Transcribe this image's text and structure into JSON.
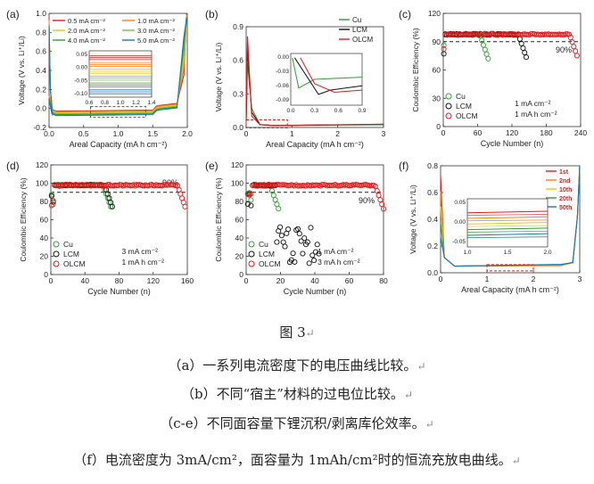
{
  "caption": {
    "figure_label": "图 3",
    "lines": [
      "（a）一系列电流密度下的电压曲线比较。",
      "（b）不同“宿主”材料的过电位比较。",
      "（c-e）不同面容量下锂沉积/剥离库伦效率。",
      "（f）电流密度为 3mA/cm²，面容量为 1mAh/cm²时的恒流充放电曲线。"
    ],
    "return_mark": "↵"
  },
  "chart_data": [
    {
      "panel": "(a)",
      "type": "line",
      "xlabel": "Areal Capacity (mA h cm⁻²)",
      "ylabel": "Voltage (V vs. Li⁺/Li)",
      "xlim": [
        0,
        2.0
      ],
      "ylim": [
        -0.2,
        1.0
      ],
      "xticks": [
        "0.0",
        "0.5",
        "1.0",
        "1.5",
        "2.0"
      ],
      "yticks": [
        "-0.2",
        "0.0",
        "0.2",
        "0.4",
        "0.6",
        "0.8",
        "1.0"
      ],
      "series": [
        {
          "name": "0.5 mA cm⁻²",
          "color": "#e31a1c",
          "plateau": -0.028
        },
        {
          "name": "1.0 mA cm⁻²",
          "color": "#ff7f0e",
          "plateau": -0.035
        },
        {
          "name": "2.0 mA cm⁻²",
          "color": "#f2c500",
          "plateau": -0.045
        },
        {
          "name": "3.0 mA cm⁻²",
          "color": "#7fbf3f",
          "plateau": -0.055
        },
        {
          "name": "4.0 mA cm⁻²",
          "color": "#2ca02c",
          "plateau": -0.065
        },
        {
          "name": "5.0 mA cm⁻²",
          "color": "#1f77b4",
          "plateau": -0.075
        }
      ],
      "inset": {
        "xticks": [
          "0.6",
          "0.8",
          "1.0",
          "1.2",
          "1.4"
        ],
        "yticks": [
          "0.05",
          "0.00",
          "-0.05",
          "-0.10"
        ],
        "xlim": [
          0.6,
          1.4
        ],
        "ylim": [
          -0.12,
          0.07
        ]
      }
    },
    {
      "panel": "(b)",
      "type": "line",
      "xlabel": "Areal Capacity (mA h cm⁻²)",
      "ylabel": "Voltage (V vs. Li⁺/Li)",
      "xlim": [
        0,
        3
      ],
      "ylim": [
        -0.05,
        1.0
      ],
      "xticks": [
        "0",
        "1",
        "2",
        "3"
      ],
      "yticks": [
        "0.0",
        "0.3",
        "0.6",
        "0.9"
      ],
      "series": [
        {
          "name": "Cu",
          "color": "#2ca02c",
          "peak": 0.62
        },
        {
          "name": "LCM",
          "color": "#111111",
          "peak": 0.78
        },
        {
          "name": "OLCM",
          "color": "#e31a1c",
          "peak": 0.9
        }
      ],
      "inset": {
        "xticks": [
          "0.0",
          "0.3",
          "0.6",
          "0.9"
        ],
        "yticks": [
          "0.00",
          "-0.03",
          "-0.06",
          "-0.09"
        ],
        "xlim": [
          0,
          0.9
        ],
        "ylim": [
          -0.11,
          0.01
        ]
      }
    },
    {
      "panel": "(c)",
      "type": "scatter",
      "xlabel": "Cycle Number (n)",
      "ylabel": "Coulombic Efficiency (%)",
      "xlim": [
        0,
        260
      ],
      "ylim": [
        0,
        120
      ],
      "xticks": [
        "0",
        "60",
        "120",
        "180",
        "240"
      ],
      "yticks": [
        "0",
        "30",
        "60",
        "90",
        "120"
      ],
      "reference_line": 90,
      "reference_label": "90%",
      "conditions": [
        "1 mA cm⁻²",
        "1 mA h cm⁻²"
      ],
      "series": [
        {
          "name": "Cu",
          "color": "#2ca02c",
          "fail_cycle": 85
        },
        {
          "name": "LCM",
          "color": "#111111",
          "fail_cycle": 158
        },
        {
          "name": "OLCM",
          "color": "#e31a1c",
          "fail_cycle": 255
        }
      ]
    },
    {
      "panel": "(d)",
      "type": "scatter",
      "xlabel": "Cycle Number (n)",
      "ylabel": "Coulombic Efficiency (%)",
      "xlim": [
        0,
        180
      ],
      "ylim": [
        0,
        120
      ],
      "xticks": [
        "0",
        "40",
        "80",
        "120",
        "160"
      ],
      "yticks": [
        "0",
        "20",
        "40",
        "60",
        "80",
        "100",
        "120"
      ],
      "reference_line": 90,
      "reference_label": "90%",
      "conditions": [
        "3 mA cm⁻²",
        "1 mA h cm⁻²"
      ],
      "series": [
        {
          "name": "Cu",
          "color": "#2ca02c",
          "fail_cycle": 80
        },
        {
          "name": "LCM",
          "color": "#111111",
          "fail_cycle": 82
        },
        {
          "name": "OLCM",
          "color": "#e31a1c",
          "fail_cycle": 178
        }
      ]
    },
    {
      "panel": "(e)",
      "type": "scatter",
      "xlabel": "Cycle Number (n)",
      "ylabel": "Coulombic Efficiency (%)",
      "xlim": [
        0,
        85
      ],
      "ylim": [
        0,
        120
      ],
      "xticks": [
        "0",
        "20",
        "40",
        "60",
        "80"
      ],
      "yticks": [
        "0",
        "20",
        "40",
        "60",
        "80",
        "100",
        "120"
      ],
      "reference_line": 90,
      "reference_label": "90%",
      "conditions": [
        "1 mA cm⁻²",
        "3 mA h cm⁻²"
      ],
      "series": [
        {
          "name": "Cu",
          "color": "#2ca02c",
          "fail_cycle": 20
        },
        {
          "name": "LCM",
          "color": "#111111",
          "fail_cycle": 45
        },
        {
          "name": "OLCM",
          "color": "#e31a1c",
          "fail_cycle": 85
        }
      ]
    },
    {
      "panel": "(f)",
      "type": "line",
      "xlabel": "Areal Capacity (mA h cm⁻²)",
      "ylabel": "Voltage (V vs. Li⁺/Li)",
      "xlim": [
        0,
        3
      ],
      "ylim": [
        -0.05,
        1.0
      ],
      "xticks": [
        "0",
        "1",
        "2",
        "3"
      ],
      "yticks": [
        "0.0",
        "0.2",
        "0.4",
        "0.6",
        "0.8"
      ],
      "series": [
        {
          "name": "1st",
          "color": "#e31a1c"
        },
        {
          "name": "2nd",
          "color": "#ff7f0e"
        },
        {
          "name": "10th",
          "color": "#f2c500"
        },
        {
          "name": "20th",
          "color": "#2ca02c"
        },
        {
          "name": "50th",
          "color": "#1f77b4"
        }
      ],
      "inset": {
        "xticks": [
          "1.0",
          "1.5",
          "2.0"
        ],
        "yticks": [
          "0.05",
          "0.00",
          "-0.05"
        ],
        "xlim": [
          1.0,
          2.0
        ],
        "ylim": [
          -0.06,
          0.06
        ]
      }
    }
  ]
}
